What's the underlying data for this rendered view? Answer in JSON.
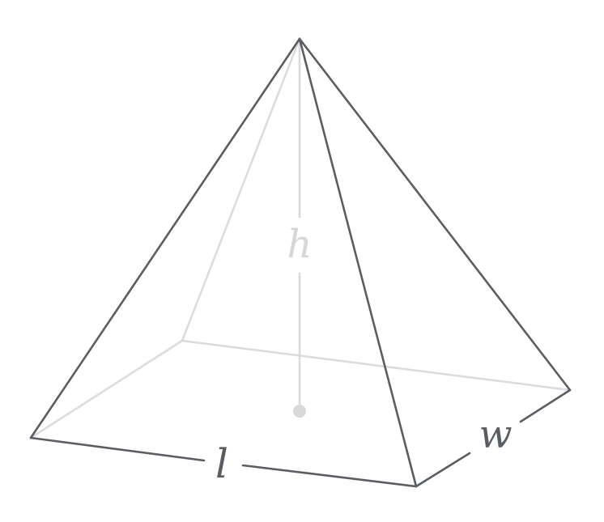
{
  "labels": {
    "height": "h",
    "length": "l",
    "width": "w"
  },
  "colors": {
    "visible_edge": "#5a5e63",
    "hidden_edge": "#dcdcde",
    "height_label": "#d6d6da",
    "side_label": "#5a5e63"
  }
}
